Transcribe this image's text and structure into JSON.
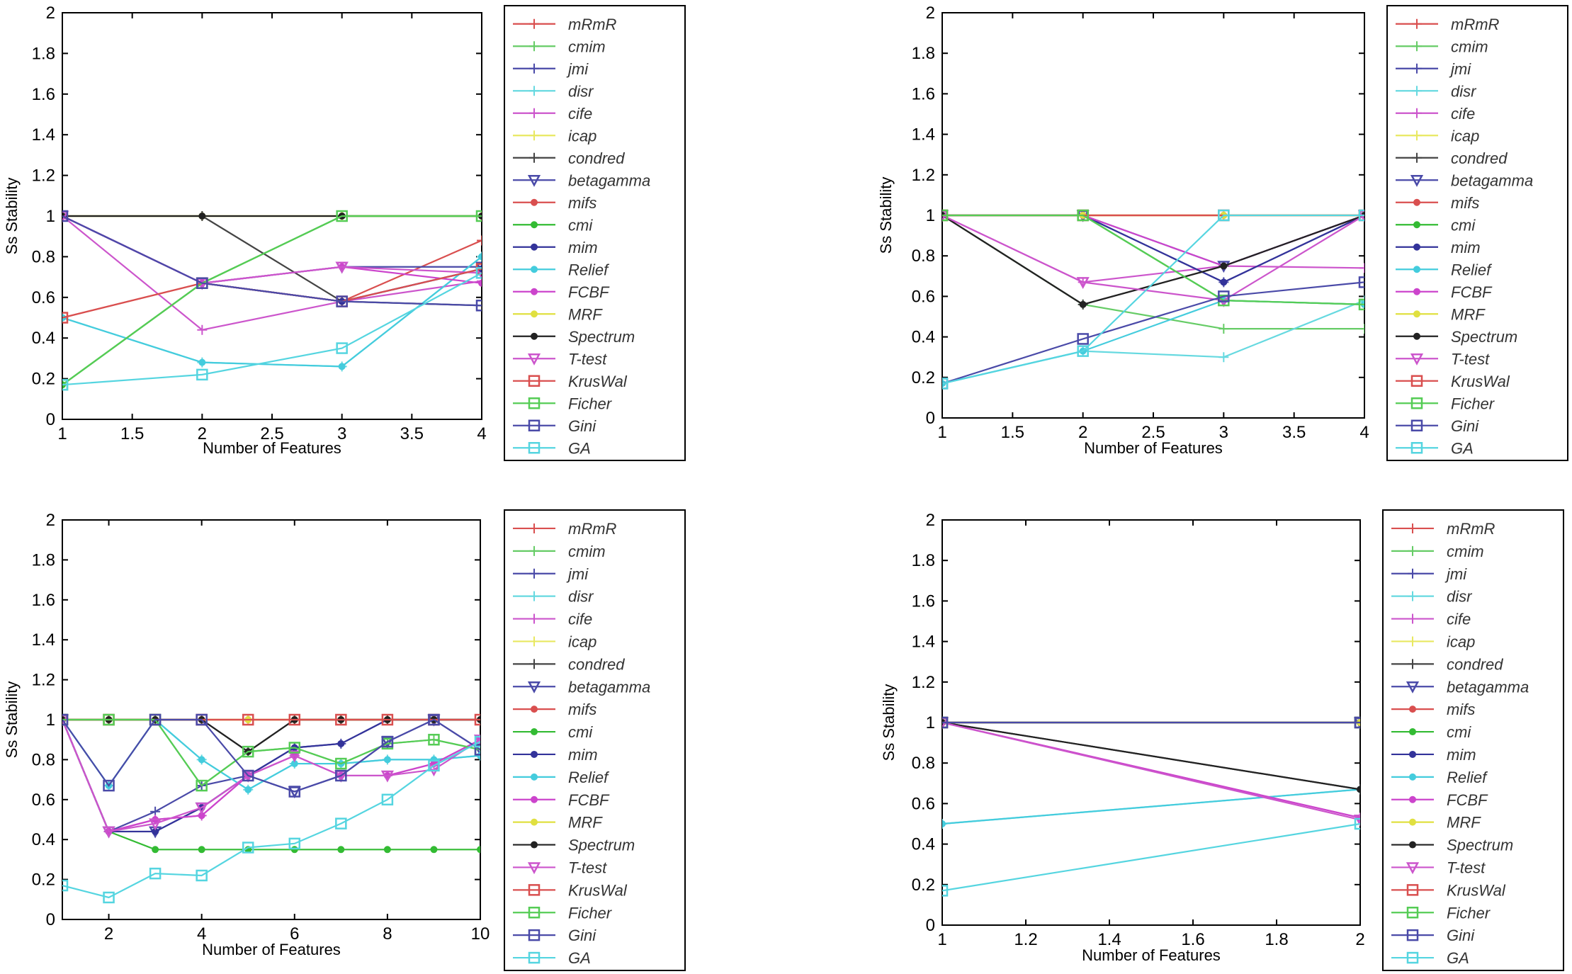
{
  "chart_data": [
    {
      "type": "line",
      "xlabel": "Number of Features",
      "ylabel": "Ss Stability",
      "xlim": [
        1,
        4
      ],
      "ylim": [
        0,
        2
      ],
      "xticks": [
        "1",
        "1.5",
        "2",
        "2.5",
        "3",
        "3.5",
        "4"
      ],
      "yticks": [
        "0",
        "0.2",
        "0.4",
        "0.6",
        "0.8",
        "1",
        "1.2",
        "1.4",
        "1.6",
        "1.8",
        "2"
      ],
      "x": [
        1,
        2,
        3,
        4
      ],
      "series": [
        {
          "name": "mRmR",
          "values": [
            1.0,
            0.67,
            0.58,
            0.88
          ]
        },
        {
          "name": "cmim",
          "values": [
            0.17,
            0.67,
            1.0,
            1.0
          ]
        },
        {
          "name": "jmi",
          "values": [
            1.0,
            0.67,
            0.58,
            0.74
          ]
        },
        {
          "name": "disr",
          "values": [
            0.5,
            0.28,
            0.26,
            0.8
          ]
        },
        {
          "name": "cife",
          "values": [
            1.0,
            0.44,
            0.58,
            0.68
          ]
        },
        {
          "name": "icap",
          "values": [
            1.0,
            1.0,
            1.0,
            1.0
          ]
        },
        {
          "name": "condred",
          "values": [
            1.0,
            1.0,
            0.58,
            0.56
          ]
        },
        {
          "name": "betagamma",
          "values": [
            1.0,
            0.67,
            0.75,
            0.75
          ]
        },
        {
          "name": "mifs",
          "values": [
            0.5,
            0.67,
            0.58,
            0.74
          ]
        },
        {
          "name": "cmi",
          "values": [
            0.17,
            0.67,
            1.0,
            1.0
          ]
        },
        {
          "name": "mim",
          "values": [
            1.0,
            0.67,
            0.58,
            0.74
          ]
        },
        {
          "name": "Relief",
          "values": [
            0.5,
            0.28,
            0.26,
            0.8
          ]
        },
        {
          "name": "FCBF",
          "values": [
            1.0,
            0.67,
            0.75,
            0.67
          ]
        },
        {
          "name": "MRF",
          "values": [
            1.0,
            1.0,
            1.0,
            1.0
          ]
        },
        {
          "name": "Spectrum",
          "values": [
            1.0,
            1.0,
            1.0,
            1.0
          ]
        },
        {
          "name": "T-test",
          "values": [
            1.0,
            0.67,
            0.75,
            0.72
          ]
        },
        {
          "name": "KrusWal",
          "values": [
            0.5,
            0.67,
            0.58,
            0.74
          ]
        },
        {
          "name": "Ficher",
          "values": [
            0.17,
            0.67,
            1.0,
            1.0
          ]
        },
        {
          "name": "Gini",
          "values": [
            1.0,
            0.67,
            0.58,
            0.56
          ]
        },
        {
          "name": "GA",
          "values": [
            0.17,
            0.22,
            0.35,
            0.72
          ]
        }
      ]
    },
    {
      "type": "line",
      "xlabel": "Number of Features",
      "ylabel": "Ss Stability",
      "xlim": [
        1,
        4
      ],
      "ylim": [
        0,
        2
      ],
      "xticks": [
        "1",
        "1.5",
        "2",
        "2.5",
        "3",
        "3.5",
        "4"
      ],
      "yticks": [
        "0",
        "0.2",
        "0.4",
        "0.6",
        "0.8",
        "1",
        "1.2",
        "1.4",
        "1.6",
        "1.8",
        "2"
      ],
      "x": [
        1,
        2,
        3,
        4
      ],
      "series": [
        {
          "name": "mRmR",
          "values": [
            1.0,
            1.0,
            1.0,
            1.0
          ]
        },
        {
          "name": "cmim",
          "values": [
            1.0,
            0.56,
            0.44,
            0.44
          ]
        },
        {
          "name": "jmi",
          "values": [
            1.0,
            1.0,
            0.67,
            1.0
          ]
        },
        {
          "name": "disr",
          "values": [
            0.17,
            0.33,
            0.3,
            0.58
          ]
        },
        {
          "name": "cife",
          "values": [
            1.0,
            0.67,
            0.75,
            0.74
          ]
        },
        {
          "name": "icap",
          "values": [
            1.0,
            1.0,
            1.0,
            1.0
          ]
        },
        {
          "name": "condred",
          "values": [
            1.0,
            0.56,
            0.75,
            1.0
          ]
        },
        {
          "name": "betagamma",
          "values": [
            1.0,
            1.0,
            0.75,
            1.0
          ]
        },
        {
          "name": "mifs",
          "values": [
            1.0,
            1.0,
            1.0,
            1.0
          ]
        },
        {
          "name": "cmi",
          "values": [
            1.0,
            1.0,
            0.58,
            0.56
          ]
        },
        {
          "name": "mim",
          "values": [
            1.0,
            1.0,
            0.67,
            1.0
          ]
        },
        {
          "name": "Relief",
          "values": [
            0.17,
            0.33,
            0.58,
            0.56
          ]
        },
        {
          "name": "FCBF",
          "values": [
            1.0,
            1.0,
            0.75,
            1.0
          ]
        },
        {
          "name": "MRF",
          "values": [
            1.0,
            1.0,
            1.0,
            1.0
          ]
        },
        {
          "name": "Spectrum",
          "values": [
            1.0,
            0.56,
            0.75,
            1.0
          ]
        },
        {
          "name": "T-test",
          "values": [
            1.0,
            0.67,
            0.58,
            1.0
          ]
        },
        {
          "name": "KrusWal",
          "values": [
            1.0,
            1.0,
            1.0,
            1.0
          ]
        },
        {
          "name": "Ficher",
          "values": [
            1.0,
            1.0,
            0.58,
            0.56
          ]
        },
        {
          "name": "Gini",
          "values": [
            0.17,
            0.39,
            0.6,
            0.67
          ]
        },
        {
          "name": "GA",
          "values": [
            0.17,
            0.33,
            1.0,
            1.0
          ]
        }
      ]
    },
    {
      "type": "line",
      "xlabel": "Number of Features",
      "ylabel": "Ss Stability",
      "xlim": [
        1,
        10
      ],
      "ylim": [
        0,
        2
      ],
      "xticks": [
        "2",
        "4",
        "6",
        "8",
        "10"
      ],
      "yticks": [
        "0",
        "0.2",
        "0.4",
        "0.6",
        "0.8",
        "1",
        "1.2",
        "1.4",
        "1.6",
        "1.8",
        "2"
      ],
      "x": [
        1,
        2,
        3,
        4,
        5,
        6,
        7,
        8,
        9,
        10
      ],
      "series": [
        {
          "name": "mRmR",
          "values": [
            1.0,
            1.0,
            1.0,
            1.0,
            1.0,
            1.0,
            1.0,
            1.0,
            1.0,
            1.0
          ]
        },
        {
          "name": "cmim",
          "values": [
            1.0,
            1.0,
            1.0,
            0.67,
            0.84,
            0.86,
            0.78,
            0.88,
            0.9,
            0.85
          ]
        },
        {
          "name": "jmi",
          "values": [
            1.0,
            0.44,
            0.54,
            0.67,
            0.72,
            0.86,
            0.88,
            1.0,
            1.0,
            1.0
          ]
        },
        {
          "name": "disr",
          "values": [
            1.0,
            0.67,
            1.0,
            0.8,
            0.65,
            0.78,
            0.78,
            0.8,
            0.8,
            0.82
          ]
        },
        {
          "name": "cife",
          "values": [
            1.0,
            0.44,
            0.5,
            0.52,
            0.72,
            0.82,
            0.72,
            0.72,
            0.78,
            0.9
          ]
        },
        {
          "name": "icap",
          "values": [
            1.0,
            1.0,
            1.0,
            1.0,
            1.0,
            1.0,
            1.0,
            1.0,
            1.0,
            1.0
          ]
        },
        {
          "name": "condred",
          "values": [
            1.0,
            1.0,
            1.0,
            1.0,
            0.84,
            1.0,
            1.0,
            1.0,
            1.0,
            1.0
          ]
        },
        {
          "name": "betagamma",
          "values": [
            1.0,
            0.44,
            0.44,
            0.56,
            0.72,
            0.64,
            0.72,
            0.89,
            1.0,
            0.85
          ]
        },
        {
          "name": "mifs",
          "values": [
            1.0,
            1.0,
            1.0,
            1.0,
            1.0,
            1.0,
            1.0,
            1.0,
            1.0,
            1.0
          ]
        },
        {
          "name": "cmi",
          "values": [
            1.0,
            0.44,
            0.35,
            0.35,
            0.35,
            0.35,
            0.35,
            0.35,
            0.35,
            0.35
          ]
        },
        {
          "name": "mim",
          "values": [
            1.0,
            0.44,
            0.44,
            0.56,
            0.72,
            0.86,
            0.88,
            1.0,
            1.0,
            1.0
          ]
        },
        {
          "name": "Relief",
          "values": [
            1.0,
            0.67,
            1.0,
            0.8,
            0.65,
            0.78,
            0.78,
            0.8,
            0.8,
            0.82
          ]
        },
        {
          "name": "FCBF",
          "values": [
            1.0,
            0.44,
            0.5,
            0.52,
            0.72,
            0.82,
            0.72,
            0.72,
            0.78,
            0.9
          ]
        },
        {
          "name": "MRF",
          "values": [
            1.0,
            1.0,
            1.0,
            1.0,
            1.0,
            1.0,
            1.0,
            1.0,
            1.0,
            1.0
          ]
        },
        {
          "name": "Spectrum",
          "values": [
            1.0,
            1.0,
            1.0,
            1.0,
            0.84,
            1.0,
            1.0,
            1.0,
            1.0,
            1.0
          ]
        },
        {
          "name": "T-test",
          "values": [
            1.0,
            0.44,
            0.48,
            0.56,
            0.72,
            0.82,
            0.72,
            0.72,
            0.75,
            0.9
          ]
        },
        {
          "name": "KrusWal",
          "values": [
            1.0,
            1.0,
            1.0,
            1.0,
            1.0,
            1.0,
            1.0,
            1.0,
            1.0,
            1.0
          ]
        },
        {
          "name": "Ficher",
          "values": [
            1.0,
            1.0,
            1.0,
            0.67,
            0.84,
            0.86,
            0.78,
            0.88,
            0.9,
            0.85
          ]
        },
        {
          "name": "Gini",
          "values": [
            1.0,
            0.67,
            1.0,
            1.0,
            0.72,
            0.64,
            0.72,
            0.89,
            1.0,
            0.85
          ]
        },
        {
          "name": "GA",
          "values": [
            0.17,
            0.11,
            0.23,
            0.22,
            0.36,
            0.38,
            0.48,
            0.6,
            0.77,
            0.89
          ]
        }
      ]
    },
    {
      "type": "line",
      "xlabel": "Number of Features",
      "ylabel": "Ss Stability",
      "xlim": [
        1,
        2
      ],
      "ylim": [
        0,
        2
      ],
      "xticks": [
        "1",
        "1.2",
        "1.4",
        "1.6",
        "1.8",
        "2"
      ],
      "yticks": [
        "0",
        "0.2",
        "0.4",
        "0.6",
        "0.8",
        "1",
        "1.2",
        "1.4",
        "1.6",
        "1.8",
        "2"
      ],
      "x": [
        1,
        2
      ],
      "series": [
        {
          "name": "mRmR",
          "values": [
            1.0,
            1.0
          ]
        },
        {
          "name": "cmim",
          "values": [
            1.0,
            1.0
          ]
        },
        {
          "name": "jmi",
          "values": [
            1.0,
            1.0
          ]
        },
        {
          "name": "disr",
          "values": [
            0.5,
            0.67
          ]
        },
        {
          "name": "cife",
          "values": [
            1.0,
            0.53
          ]
        },
        {
          "name": "icap",
          "values": [
            1.0,
            1.0
          ]
        },
        {
          "name": "condred",
          "values": [
            1.0,
            0.67
          ]
        },
        {
          "name": "betagamma",
          "values": [
            1.0,
            1.0
          ]
        },
        {
          "name": "mifs",
          "values": [
            1.0,
            1.0
          ]
        },
        {
          "name": "cmi",
          "values": [
            1.0,
            1.0
          ]
        },
        {
          "name": "mim",
          "values": [
            1.0,
            1.0
          ]
        },
        {
          "name": "Relief",
          "values": [
            0.5,
            0.67
          ]
        },
        {
          "name": "FCBF",
          "values": [
            1.0,
            0.53
          ]
        },
        {
          "name": "MRF",
          "values": [
            1.0,
            1.0
          ]
        },
        {
          "name": "Spectrum",
          "values": [
            1.0,
            0.67
          ]
        },
        {
          "name": "T-test",
          "values": [
            1.0,
            0.52
          ]
        },
        {
          "name": "KrusWal",
          "values": [
            1.0,
            1.0
          ]
        },
        {
          "name": "Ficher",
          "values": [
            1.0,
            1.0
          ]
        },
        {
          "name": "Gini",
          "values": [
            1.0,
            1.0
          ]
        },
        {
          "name": "GA",
          "values": [
            0.17,
            0.5
          ]
        }
      ]
    }
  ],
  "legend": [
    {
      "name": "mRmR",
      "color": "#d94f4f",
      "marker": "plus"
    },
    {
      "name": "cmim",
      "color": "#66cc66",
      "marker": "plus"
    },
    {
      "name": "jmi",
      "color": "#4a4aa8",
      "marker": "plus"
    },
    {
      "name": "disr",
      "color": "#66d9e0",
      "marker": "plus"
    },
    {
      "name": "cife",
      "color": "#cc55cc",
      "marker": "plus"
    },
    {
      "name": "icap",
      "color": "#e8e860",
      "marker": "plus"
    },
    {
      "name": "condred",
      "color": "#444444",
      "marker": "plus"
    },
    {
      "name": "betagamma",
      "color": "#4a4aa8",
      "marker": "triangle-down"
    },
    {
      "name": "mifs",
      "color": "#d94f4f",
      "marker": "star"
    },
    {
      "name": "cmi",
      "color": "#33bb33",
      "marker": "star"
    },
    {
      "name": "mim",
      "color": "#33339a",
      "marker": "star"
    },
    {
      "name": "Relief",
      "color": "#44ccdd",
      "marker": "star"
    },
    {
      "name": "FCBF",
      "color": "#cc44cc",
      "marker": "star"
    },
    {
      "name": "MRF",
      "color": "#e0e040",
      "marker": "star"
    },
    {
      "name": "Spectrum",
      "color": "#222222",
      "marker": "star"
    },
    {
      "name": "T-test",
      "color": "#cc55cc",
      "marker": "triangle-down"
    },
    {
      "name": "KrusWal",
      "color": "#d94f4f",
      "marker": "square"
    },
    {
      "name": "Ficher",
      "color": "#55cc55",
      "marker": "square"
    },
    {
      "name": "Gini",
      "color": "#4a4aa8",
      "marker": "square"
    },
    {
      "name": "GA",
      "color": "#55d5e0",
      "marker": "square"
    }
  ]
}
